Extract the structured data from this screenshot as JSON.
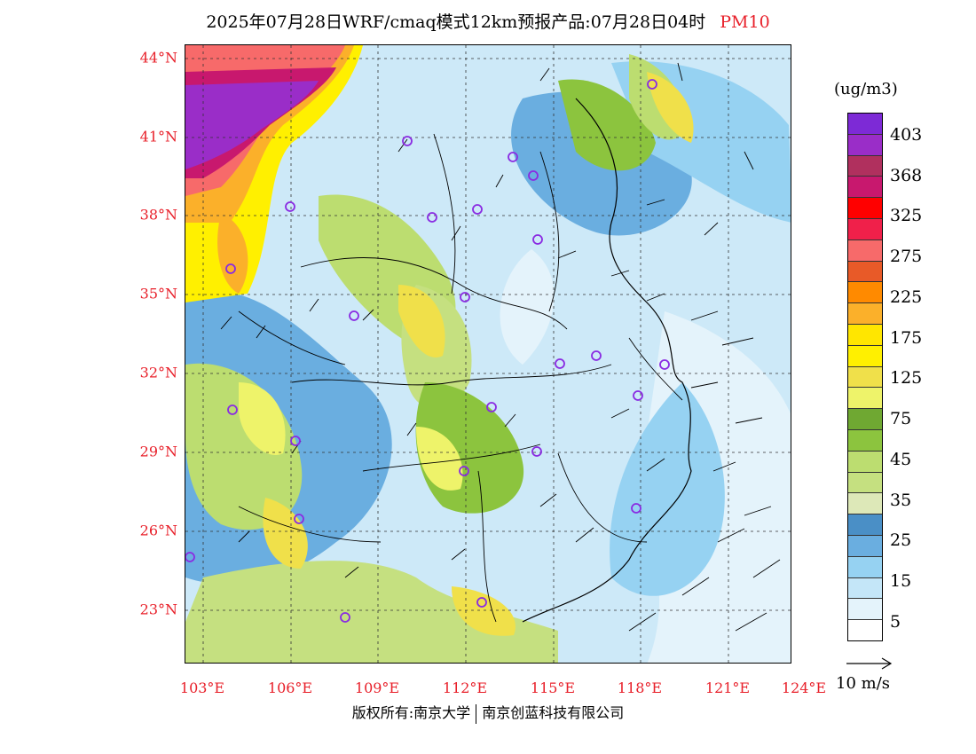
{
  "title": {
    "main": "2025年07月28日WRF/cmaq模式12km预报产品:07月28日04时",
    "pollutant": "PM10"
  },
  "axes": {
    "lat_labels": [
      "44°N",
      "41°N",
      "38°N",
      "35°N",
      "32°N",
      "29°N",
      "26°N",
      "23°N"
    ],
    "lon_labels": [
      "103°E",
      "106°E",
      "109°E",
      "112°E",
      "115°E",
      "118°E",
      "121°E",
      "124°E"
    ]
  },
  "colorbar": {
    "unit": "(ug/m3)",
    "labels": [
      "403",
      "368",
      "325",
      "275",
      "225",
      "175",
      "125",
      "75",
      "45",
      "35",
      "25",
      "15",
      "5"
    ],
    "colors": [
      "#7d2ad6",
      "#9a2dc8",
      "#b0305e",
      "#c8186e",
      "#ff0000",
      "#f0204a",
      "#f76a6a",
      "#e85a28",
      "#ff8a00",
      "#fbb02a",
      "#ffe600",
      "#fff000",
      "#f0e04a",
      "#eef36a",
      "#6fa832",
      "#8cc43e",
      "#bcdd70",
      "#c5e080",
      "#dde8b8",
      "#4a8fc6",
      "#6aaee0",
      "#96d2f2",
      "#c4e6f8",
      "#e4f3fb",
      "#ffffff"
    ]
  },
  "wind_reference": {
    "label": "10 m/s"
  },
  "copyright": {
    "left": "版权所有:南京大学",
    "right": "南京创蓝科技有限公司"
  }
}
